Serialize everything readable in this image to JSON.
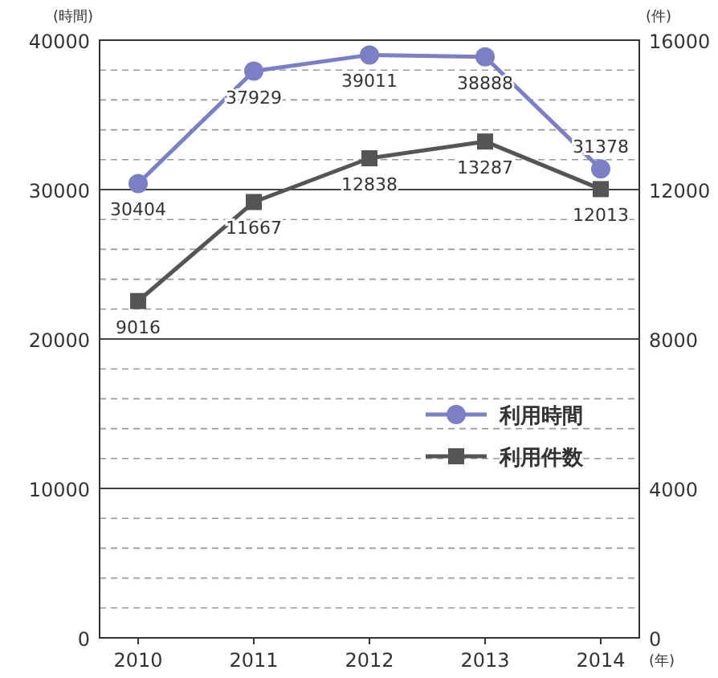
{
  "chart_data": {
    "type": "line",
    "categories": [
      "2010",
      "2011",
      "2012",
      "2013",
      "2014"
    ],
    "series": [
      {
        "name": "利用時間",
        "color": "#7a7fc6",
        "marker": "circle",
        "values": [
          30404,
          37929,
          39011,
          38888,
          31378
        ]
      },
      {
        "name": "利用件数",
        "color": "#555555",
        "marker": "square",
        "axis": "y2",
        "values": [
          9016,
          11667,
          12838,
          13287,
          12013
        ]
      }
    ],
    "ylabel": "(時間)",
    "y2label": "(件)",
    "xlabel": "(年)",
    "ylim": [
      0,
      40000
    ],
    "yticks": [
      0,
      {
        "value": 2000,
        "label": null
      },
      {
        "value": 4000,
        "label": null
      },
      {
        "value": 6000,
        "label": null
      },
      {
        "value": 8000,
        "label": null
      },
      10000,
      {
        "value": 12000,
        "label": null
      },
      {
        "value": 14000,
        "label": null
      },
      {
        "value": 16000,
        "label": null
      },
      {
        "value": 18000,
        "label": null
      },
      20000,
      {
        "value": 22000,
        "label": null
      },
      {
        "value": 24000,
        "label": null
      },
      {
        "value": 26000,
        "label": null
      },
      {
        "value": 28000,
        "label": null
      },
      30000,
      {
        "value": 32000,
        "label": null
      },
      {
        "value": 34000,
        "label": null
      },
      {
        "value": 36000,
        "label": null
      },
      {
        "value": 38000,
        "label": null
      },
      40000
    ],
    "y2lim": [
      0,
      16000
    ],
    "y2ticks": [
      0,
      4000,
      8000,
      12000,
      16000
    ],
    "grid": "y",
    "data_labels": true,
    "legend": "right",
    "line_style": "solid"
  }
}
